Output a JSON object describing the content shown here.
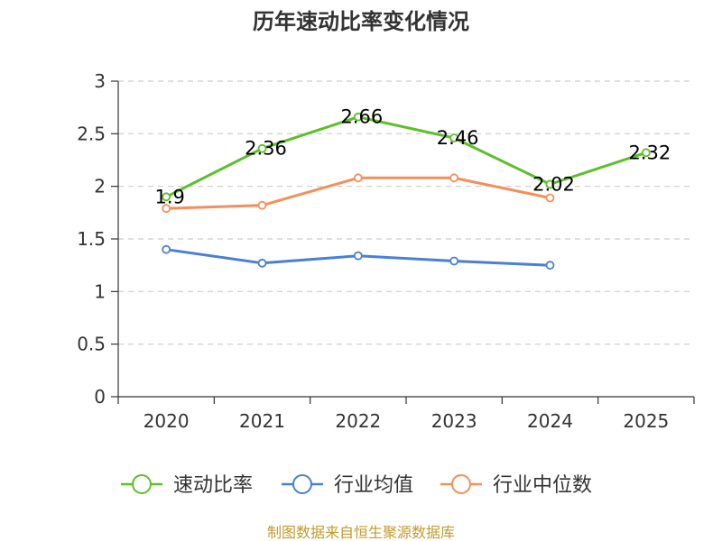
{
  "chart_data": {
    "type": "line",
    "title": "历年速动比率变化情况",
    "categories": [
      "2020",
      "2021",
      "2022",
      "2023",
      "2024",
      "2025"
    ],
    "ylim": [
      0,
      3
    ],
    "yticks": [
      "0",
      "0.5",
      "1",
      "1.5",
      "2",
      "2.5",
      "3"
    ],
    "ytick_values": [
      0,
      0.5,
      1,
      1.5,
      2,
      2.5,
      3
    ],
    "grid": true,
    "legend_position": "bottom",
    "series": [
      {
        "name": "速动比率",
        "color": "#5cbf2a",
        "values": [
          1.9,
          2.36,
          2.66,
          2.46,
          2.02,
          2.32
        ],
        "labels": [
          "1.9",
          "2.36",
          "2.66",
          "2.46",
          "2.02",
          "2.32"
        ]
      },
      {
        "name": "行业均值",
        "color": "#4a7fd6",
        "values": [
          1.4,
          1.27,
          1.34,
          1.29,
          1.25,
          null
        ]
      },
      {
        "name": "行业中位数",
        "color": "#f58f5a",
        "values": [
          1.79,
          1.82,
          2.08,
          2.08,
          1.89,
          null
        ]
      }
    ],
    "source": "制图数据来自恒生聚源数据库"
  }
}
